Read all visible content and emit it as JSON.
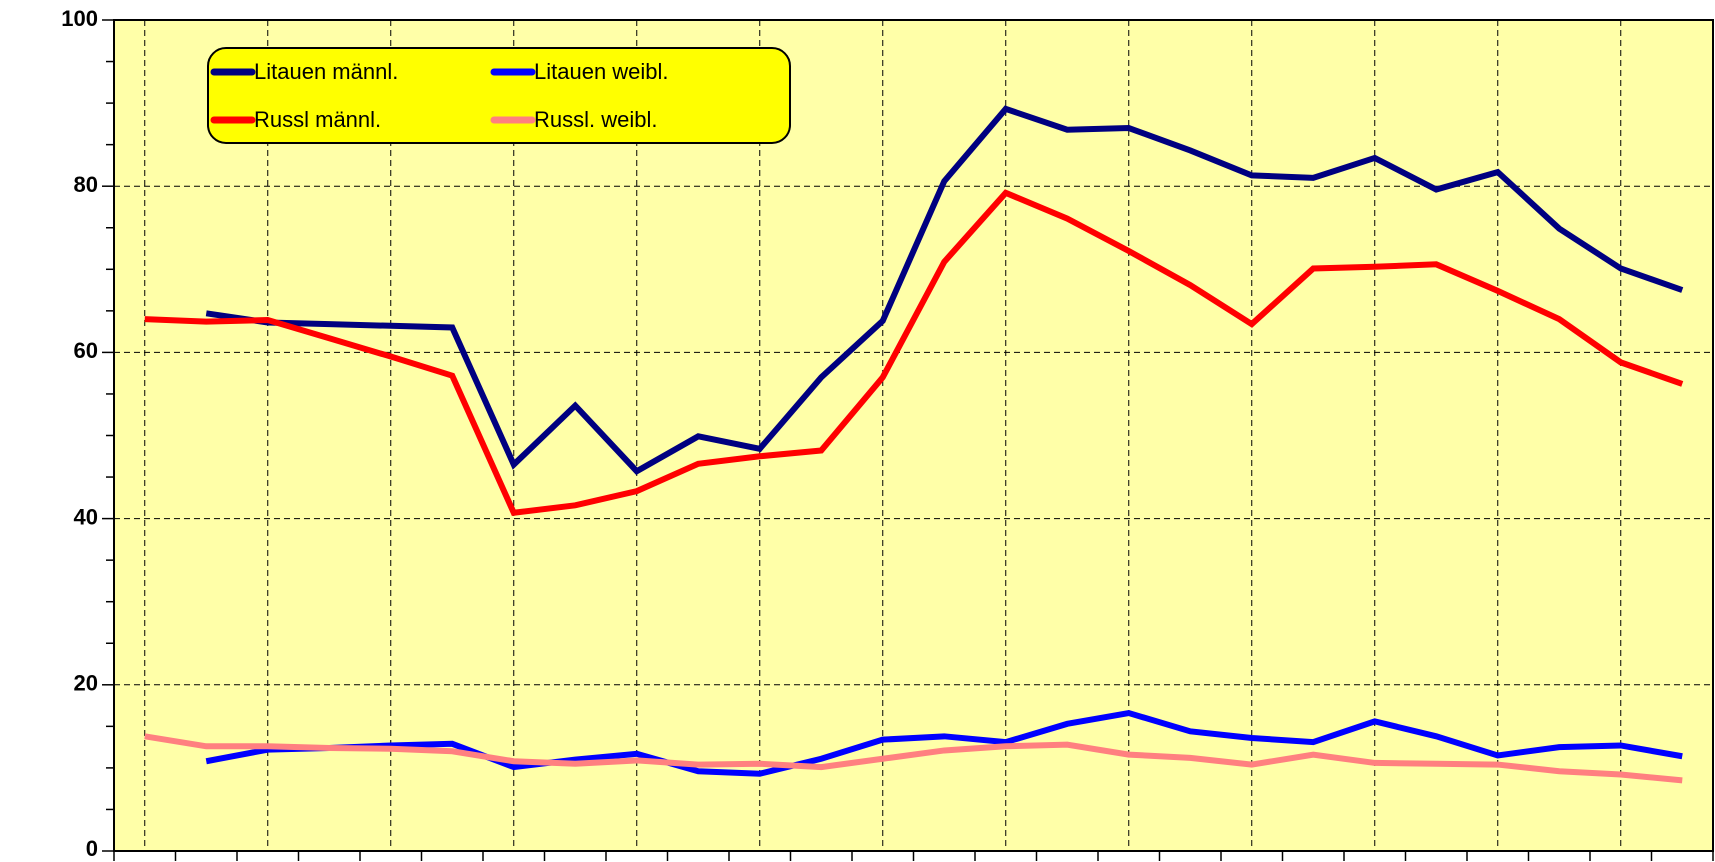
{
  "chart_data": {
    "type": "line",
    "categories": [
      null,
      null,
      null,
      null,
      null,
      null,
      null,
      null,
      null,
      null,
      null,
      null,
      null,
      null,
      null,
      null,
      null,
      null,
      null,
      null,
      null,
      null,
      null,
      null,
      null,
      null
    ],
    "series": [
      {
        "name": "Litauen männl.",
        "color": "#000080",
        "values": [
          null,
          64.7,
          63.6,
          63.4,
          63.2,
          63.0,
          46.5,
          53.6,
          45.7,
          49.9,
          48.4,
          57.0,
          63.8,
          80.6,
          89.3,
          86.8,
          87.0,
          84.3,
          81.3,
          81.0,
          83.4,
          79.6,
          81.7,
          74.9,
          70.1,
          67.5
        ]
      },
      {
        "name": "Litauen weibl.",
        "color": "#0000ff",
        "values": [
          null,
          10.8,
          12.2,
          12.4,
          12.7,
          12.9,
          10.1,
          11.0,
          11.7,
          9.6,
          9.3,
          11.1,
          13.4,
          13.8,
          13.1,
          15.3,
          16.6,
          14.4,
          13.6,
          13.1,
          15.6,
          13.8,
          11.5,
          12.5,
          12.7,
          11.4
        ]
      },
      {
        "name": "Russl männl.",
        "color": "#ff0000",
        "values": [
          64.0,
          63.7,
          63.9,
          61.7,
          59.5,
          57.2,
          40.7,
          41.6,
          43.3,
          46.6,
          47.5,
          48.2,
          57.0,
          70.9,
          79.2,
          76.1,
          72.2,
          68.1,
          63.4,
          70.1,
          70.3,
          70.6,
          67.4,
          64.0,
          58.8,
          56.2
        ]
      },
      {
        "name": "Russl. weibl.",
        "color": "#ff8080",
        "values": [
          13.8,
          12.6,
          12.6,
          12.4,
          12.3,
          12.0,
          10.8,
          10.5,
          10.9,
          10.4,
          10.5,
          10.1,
          11.1,
          12.1,
          12.6,
          12.8,
          11.6,
          11.2,
          10.4,
          11.6,
          10.6,
          10.5,
          10.4,
          9.6,
          9.2,
          8.5
        ]
      }
    ],
    "ylim": [
      0,
      100
    ],
    "yticks": [
      0,
      20,
      40,
      60,
      80,
      100
    ],
    "yminorticks": [
      5,
      10,
      15,
      25,
      30,
      35,
      45,
      50,
      55,
      65,
      70,
      75,
      85,
      90,
      95
    ],
    "grid": true,
    "legend": "upper left",
    "background": "#ffffa8"
  }
}
